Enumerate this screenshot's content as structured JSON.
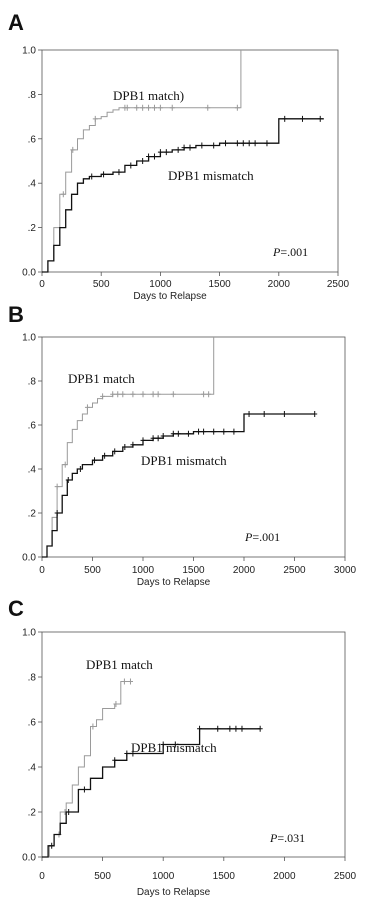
{
  "chart_data": [
    {
      "type": "line",
      "panel": "A",
      "xlabel": "Days to Relapse",
      "ylabel": "",
      "xlim": [
        0,
        2500
      ],
      "ylim": [
        0,
        1.0
      ],
      "x_ticks": [
        "0",
        "500",
        "1000",
        "1500",
        "2000",
        "2500"
      ],
      "y_ticks": [
        "0.0",
        ".2",
        ".4",
        ".6",
        ".8",
        "1.0"
      ],
      "p_value": ".001",
      "series": [
        {
          "name": "DPB1 match)",
          "color": "#9a9a9a",
          "x": [
            0,
            50,
            100,
            150,
            200,
            250,
            300,
            350,
            400,
            450,
            500,
            550,
            600,
            650,
            1680,
            1680
          ],
          "y": [
            0,
            0.05,
            0.2,
            0.35,
            0.45,
            0.55,
            0.6,
            0.64,
            0.66,
            0.69,
            0.7,
            0.72,
            0.73,
            0.74,
            0.74,
            1.0
          ],
          "censor_x": [
            180,
            260,
            450,
            700,
            720,
            800,
            850,
            900,
            950,
            1000,
            1100,
            1400,
            1650
          ]
        },
        {
          "name": "DPB1 mismatch",
          "color": "#111111",
          "x": [
            0,
            50,
            100,
            150,
            200,
            250,
            300,
            350,
            400,
            500,
            600,
            700,
            800,
            900,
            1000,
            1100,
            1200,
            1300,
            1500,
            1600,
            2000,
            2000,
            2380
          ],
          "y": [
            0,
            0.05,
            0.12,
            0.2,
            0.28,
            0.35,
            0.4,
            0.42,
            0.43,
            0.44,
            0.45,
            0.48,
            0.5,
            0.52,
            0.54,
            0.55,
            0.56,
            0.57,
            0.58,
            0.58,
            0.58,
            0.69,
            0.69
          ],
          "censor_x": [
            420,
            520,
            650,
            750,
            850,
            900,
            950,
            1000,
            1050,
            1150,
            1200,
            1250,
            1350,
            1450,
            1550,
            1650,
            1700,
            1750,
            1800,
            1900,
            2050,
            2200,
            2350
          ]
        }
      ]
    },
    {
      "type": "line",
      "panel": "B",
      "xlabel": "Days to Relapse",
      "ylabel": "",
      "xlim": [
        0,
        3000
      ],
      "ylim": [
        0,
        1.0
      ],
      "x_ticks": [
        "0",
        "500",
        "1000",
        "1500",
        "2000",
        "2500",
        "3000"
      ],
      "y_ticks": [
        "0.0",
        ".2",
        ".4",
        ".6",
        ".8",
        "1.0"
      ],
      "p_value": ".001",
      "series": [
        {
          "name": "DPB1 match",
          "color": "#9a9a9a",
          "x": [
            0,
            50,
            100,
            150,
            200,
            250,
            300,
            350,
            400,
            450,
            500,
            550,
            600,
            700,
            1700,
            1700
          ],
          "y": [
            0,
            0.05,
            0.18,
            0.32,
            0.42,
            0.52,
            0.58,
            0.62,
            0.65,
            0.68,
            0.7,
            0.72,
            0.73,
            0.74,
            0.74,
            1.0
          ],
          "censor_x": [
            150,
            230,
            450,
            600,
            700,
            750,
            800,
            900,
            1000,
            1100,
            1150,
            1300,
            1600,
            1650
          ]
        },
        {
          "name": "DPB1 mismatch",
          "color": "#111111",
          "x": [
            0,
            50,
            100,
            150,
            200,
            250,
            300,
            350,
            400,
            500,
            600,
            700,
            800,
            900,
            1000,
            1100,
            1200,
            1300,
            1400,
            1500,
            2000,
            2000,
            2700
          ],
          "y": [
            0,
            0.05,
            0.12,
            0.2,
            0.28,
            0.35,
            0.38,
            0.4,
            0.42,
            0.44,
            0.46,
            0.48,
            0.5,
            0.51,
            0.53,
            0.54,
            0.55,
            0.56,
            0.56,
            0.57,
            0.57,
            0.65,
            0.65
          ],
          "censor_x": [
            150,
            260,
            380,
            520,
            620,
            720,
            820,
            900,
            1000,
            1100,
            1150,
            1200,
            1300,
            1350,
            1450,
            1550,
            1600,
            1700,
            1800,
            1900,
            2050,
            2200,
            2400,
            2700
          ]
        }
      ]
    },
    {
      "type": "line",
      "panel": "C",
      "xlabel": "Days to Relapse",
      "ylabel": "",
      "xlim": [
        0,
        2500
      ],
      "ylim": [
        0,
        1.0
      ],
      "x_ticks": [
        "0",
        "500",
        "1000",
        "1500",
        "2000",
        "2500"
      ],
      "y_ticks": [
        "0.0",
        ".2",
        ".4",
        ".6",
        ".8",
        "1.0"
      ],
      "p_value": ".031",
      "series": [
        {
          "name": "DPB1 match",
          "color": "#9a9a9a",
          "x": [
            0,
            60,
            100,
            150,
            200,
            250,
            300,
            350,
            400,
            450,
            500,
            600,
            650,
            750
          ],
          "y": [
            0,
            0.05,
            0.1,
            0.2,
            0.24,
            0.32,
            0.4,
            0.45,
            0.58,
            0.61,
            0.66,
            0.68,
            0.78,
            0.78
          ],
          "censor_x": [
            140,
            190,
            420,
            610,
            680,
            730
          ]
        },
        {
          "name": "DPB1 mismatch",
          "color": "#111111",
          "x": [
            0,
            50,
            100,
            150,
            200,
            300,
            400,
            500,
            600,
            700,
            900,
            1000,
            1200,
            1300,
            1800
          ],
          "y": [
            0,
            0.05,
            0.1,
            0.15,
            0.2,
            0.3,
            0.35,
            0.4,
            0.43,
            0.46,
            0.46,
            0.5,
            0.5,
            0.57,
            0.57
          ],
          "censor_x": [
            80,
            220,
            350,
            600,
            700,
            750,
            1000,
            1100,
            1300,
            1450,
            1550,
            1600,
            1650,
            1800
          ]
        }
      ]
    }
  ],
  "figure": {
    "panels": [
      {
        "letter": "A",
        "p_prefix": "P",
        "p_value": "=.001",
        "xlabel": "Days to Relapse",
        "match_label": "DPB1 match)",
        "mismatch_label": "DPB1 mismatch"
      },
      {
        "letter": "B",
        "p_prefix": "P",
        "p_value": "=.001",
        "xlabel": "Days to Relapse",
        "match_label": "DPB1 match",
        "mismatch_label": "DPB1 mismatch"
      },
      {
        "letter": "C",
        "p_prefix": "P",
        "p_value": "=.031",
        "xlabel": "Days to Relapse",
        "match_label": "DPB1 match",
        "mismatch_label": "DPB1 mismatch"
      }
    ]
  }
}
